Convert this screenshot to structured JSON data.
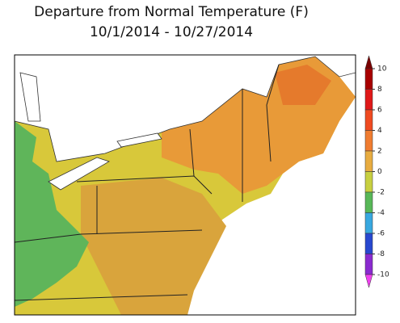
{
  "title": {
    "line1": "Departure from Normal Temperature (F)",
    "line2": "10/1/2014 - 10/27/2014"
  },
  "legend": {
    "ticks": [
      10,
      8,
      6,
      4,
      2,
      0,
      -2,
      -4,
      -6,
      -8,
      -10
    ],
    "segment_colors": [
      "#a80000",
      "#e01818",
      "#f04a20",
      "#f07c30",
      "#e8ac40",
      "#c8d040",
      "#58b858",
      "#38a8e0",
      "#2848d0",
      "#8a2ad0"
    ],
    "end_colors": [
      "#7a0000",
      "#f040f0"
    ]
  }
}
